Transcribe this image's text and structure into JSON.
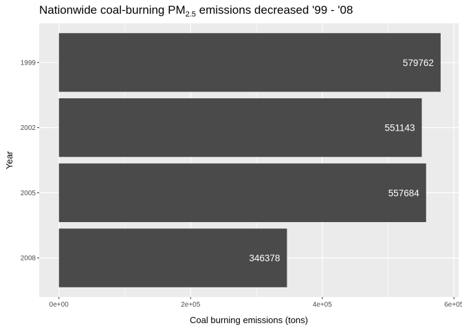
{
  "chart_data": {
    "type": "bar",
    "orientation": "horizontal",
    "title": {
      "prefix": "Nationwide coal-burning PM",
      "subscript": "2.5",
      "suffix": " emissions decreased '99 - '08"
    },
    "categories": [
      "1999",
      "2002",
      "2005",
      "2008"
    ],
    "values": [
      579762,
      551143,
      557684,
      346378
    ],
    "value_labels": [
      "579762",
      "551143",
      "557684",
      "346378"
    ],
    "xlabel": "Coal burning emissions (tons)",
    "ylabel": "Year",
    "xlim": [
      -30000,
      607000
    ],
    "x_ticks": [
      0,
      200000,
      400000,
      600000
    ],
    "x_tick_labels": [
      "0e+00",
      "2e+05",
      "4e+05",
      "6e+05"
    ],
    "x_minor_ticks": [
      100000,
      300000,
      500000
    ],
    "grid": true,
    "legend": "none",
    "colors": {
      "bar": "#4a4a4a",
      "panel": "#ebebeb",
      "grid": "#ffffff",
      "bar_label": "#ffffff"
    }
  }
}
